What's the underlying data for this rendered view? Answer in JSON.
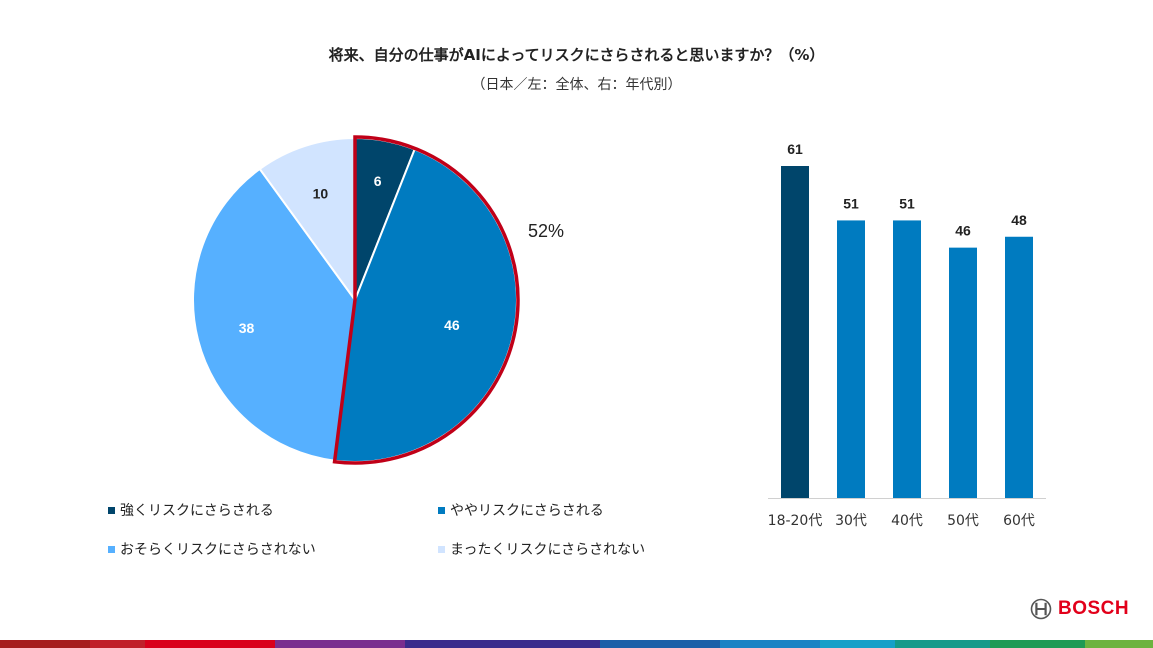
{
  "title": "将来、自分の仕事がAIによってリスクにさらされると思いますか？（%）",
  "subtitle": "（日本／左：全体、右：年代別）",
  "chart_data": [
    {
      "type": "pie",
      "categories": [
        "強くリスクにさらされる",
        "ややリスクにさらされる",
        "おそらくリスクにさらされない",
        "まったくリスクにさらされない"
      ],
      "values": [
        6,
        46,
        38,
        10
      ],
      "colors": [
        "#00456b",
        "#007bc0",
        "#56b0ff",
        "#d1e4ff"
      ],
      "highlight_total": "52%",
      "highlight_color": "#c00018",
      "legend_position": "bottom"
    },
    {
      "type": "bar",
      "categories": [
        "18-20代",
        "30代",
        "40代",
        "50代",
        "60代"
      ],
      "values": [
        61,
        51,
        51,
        46,
        48
      ],
      "colors": [
        "#00456b",
        "#007bc0",
        "#007bc0",
        "#007bc0",
        "#007bc0"
      ],
      "ylim": [
        0,
        61
      ]
    }
  ],
  "logo": {
    "text": "BOSCH",
    "icon": "bosch-armature-icon",
    "color": "#e2001a"
  }
}
